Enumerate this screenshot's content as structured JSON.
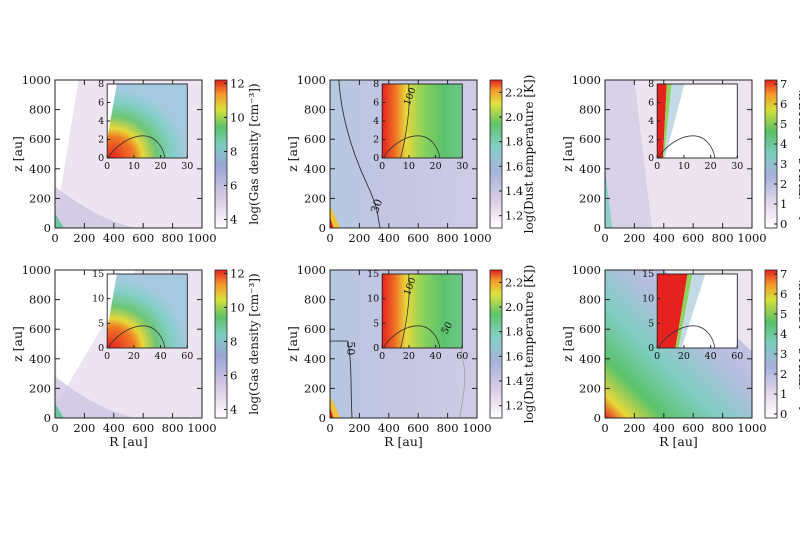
{
  "chart_data": [
    {
      "type": "heatmap",
      "quantity": "gas_density",
      "xlabel": "",
      "ylabel": "z [au]",
      "xlim": [
        0,
        1000
      ],
      "ylim": [
        0,
        1000
      ],
      "xticks": [
        "0",
        "200",
        "400",
        "600",
        "800",
        "1000"
      ],
      "yticks": [
        "0",
        "200",
        "400",
        "600",
        "800",
        "1000"
      ],
      "colorbar": {
        "label": "log(Gas density [cm⁻³])",
        "range": [
          3.5,
          12.2
        ],
        "ticks": [
          "4",
          "6",
          "8",
          "10",
          "12"
        ]
      },
      "inset": {
        "xlim": [
          0,
          30
        ],
        "ylim": [
          0,
          8
        ],
        "xticks": [
          "0",
          "10",
          "20",
          "30"
        ],
        "yticks": [
          "0",
          "2",
          "4",
          "6",
          "8"
        ]
      }
    },
    {
      "type": "heatmap",
      "quantity": "dust_temperature",
      "xlabel": "",
      "ylabel": "z [au]",
      "xlim": [
        0,
        1000
      ],
      "ylim": [
        0,
        1000
      ],
      "xticks": [
        "0",
        "200",
        "400",
        "600",
        "800",
        "1000"
      ],
      "yticks": [
        "0",
        "200",
        "400",
        "600",
        "800",
        "1000"
      ],
      "contour_labels": [
        "30"
      ],
      "colorbar": {
        "label": "log(Dust temperature [K])",
        "range": [
          1.1,
          2.3
        ],
        "ticks": [
          "1.2",
          "1.4",
          "1.6",
          "1.8",
          "2.0",
          "2.2"
        ]
      },
      "inset": {
        "xlim": [
          0,
          30
        ],
        "ylim": [
          0,
          8
        ],
        "xticks": [
          "0",
          "10",
          "20",
          "30"
        ],
        "yticks": [
          "0",
          "2",
          "4",
          "6",
          "8"
        ],
        "contour_labels": [
          "100"
        ]
      }
    },
    {
      "type": "heatmap",
      "quantity": "fuv_flux",
      "xlabel": "",
      "ylabel": "z [au]",
      "xlim": [
        0,
        1000
      ],
      "ylim": [
        0,
        1000
      ],
      "xticks": [
        "0",
        "200",
        "400",
        "600",
        "800",
        "1000"
      ],
      "yticks": [
        "0",
        "200",
        "400",
        "600",
        "800",
        "1000"
      ],
      "colorbar": {
        "label": "log(FUV flux [CRUV])",
        "range": [
          -0.2,
          7.2
        ],
        "ticks": [
          "0",
          "1",
          "2",
          "3",
          "4",
          "5",
          "6",
          "7"
        ]
      },
      "inset": {
        "xlim": [
          0,
          30
        ],
        "ylim": [
          0,
          8
        ],
        "xticks": [
          "0",
          "10",
          "20",
          "30"
        ],
        "yticks": [
          "0",
          "2",
          "4",
          "6",
          "8"
        ]
      }
    },
    {
      "type": "heatmap",
      "quantity": "gas_density",
      "xlabel": "R [au]",
      "ylabel": "z [au]",
      "xlim": [
        0,
        1000
      ],
      "ylim": [
        0,
        1000
      ],
      "xticks": [
        "0",
        "200",
        "400",
        "600",
        "800",
        "1000"
      ],
      "yticks": [
        "0",
        "200",
        "400",
        "600",
        "800",
        "1000"
      ],
      "colorbar": {
        "label": "log(Gas density [cm⁻³])",
        "range": [
          3.5,
          12.2
        ],
        "ticks": [
          "4",
          "6",
          "8",
          "10",
          "12"
        ]
      },
      "inset": {
        "xlim": [
          0,
          60
        ],
        "ylim": [
          0,
          16
        ],
        "xticks": [
          "0",
          "20",
          "40",
          "60"
        ],
        "yticks": [
          "0",
          "5",
          "10",
          "15"
        ]
      }
    },
    {
      "type": "heatmap",
      "quantity": "dust_temperature",
      "xlabel": "R [au]",
      "ylabel": "z [au]",
      "xlim": [
        0,
        1000
      ],
      "ylim": [
        0,
        1000
      ],
      "xticks": [
        "0",
        "200",
        "400",
        "600",
        "800",
        "1000"
      ],
      "yticks": [
        "0",
        "200",
        "400",
        "600",
        "800",
        "1000"
      ],
      "contour_labels": [
        "50"
      ],
      "colorbar": {
        "label": "log(Dust temperature [K])",
        "range": [
          1.1,
          2.3
        ],
        "ticks": [
          "1.2",
          "1.4",
          "1.6",
          "1.8",
          "2.0",
          "2.2"
        ]
      },
      "inset": {
        "xlim": [
          0,
          60
        ],
        "ylim": [
          0,
          16
        ],
        "xticks": [
          "0",
          "20",
          "40",
          "60"
        ],
        "yticks": [
          "0",
          "5",
          "10",
          "15"
        ],
        "contour_labels": [
          "100",
          "50"
        ]
      }
    },
    {
      "type": "heatmap",
      "quantity": "fuv_flux",
      "xlabel": "R [au]",
      "ylabel": "z [au]",
      "xlim": [
        0,
        1000
      ],
      "ylim": [
        0,
        1000
      ],
      "xticks": [
        "0",
        "200",
        "400",
        "600",
        "800",
        "1000"
      ],
      "yticks": [
        "0",
        "200",
        "400",
        "600",
        "800",
        "1000"
      ],
      "colorbar": {
        "label": "log(FUV flux [CRUV])",
        "range": [
          -0.2,
          7.2
        ],
        "ticks": [
          "0",
          "1",
          "2",
          "3",
          "4",
          "5",
          "6",
          "7"
        ]
      },
      "inset": {
        "xlim": [
          0,
          60
        ],
        "ylim": [
          0,
          16
        ],
        "xticks": [
          "0",
          "20",
          "40",
          "60"
        ],
        "yticks": [
          "0",
          "5",
          "10",
          "15"
        ]
      }
    }
  ]
}
